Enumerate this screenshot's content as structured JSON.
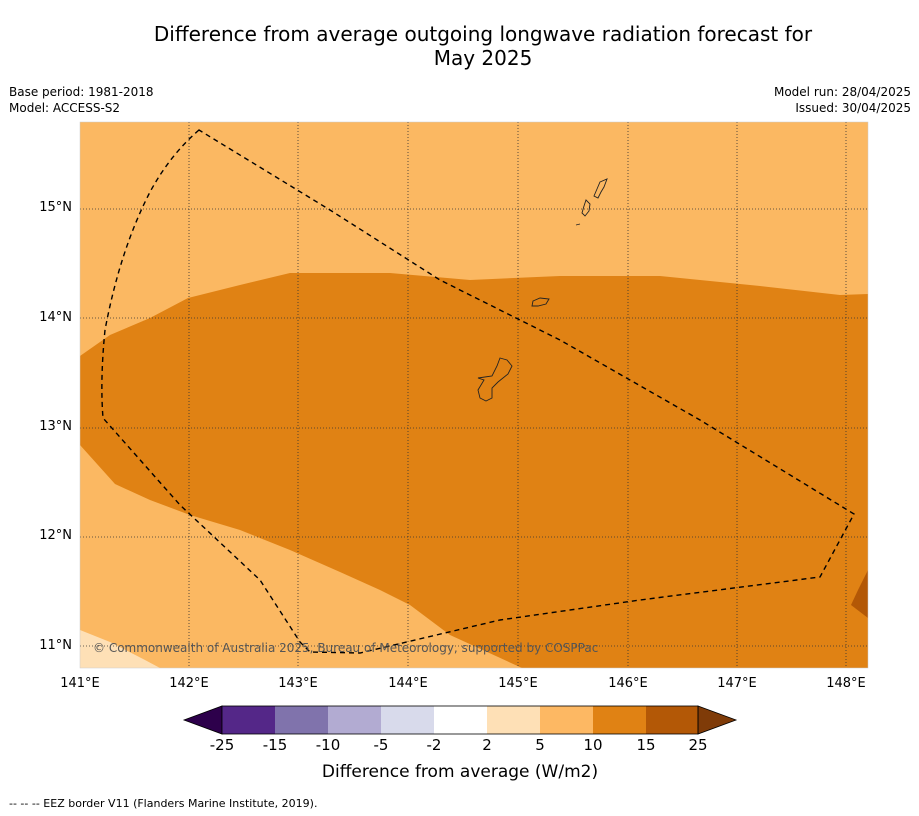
{
  "header": {
    "title_line1": "Difference from average outgoing longwave radiation forecast for",
    "title_line2": "May 2025",
    "base_period": "Base period: 1981-2018",
    "model": "Model: ACCESS-S2",
    "model_run": "Model run: 28/04/2025",
    "issued": "Issued: 30/04/2025"
  },
  "map": {
    "lat_labels": [
      "15°N",
      "14°N",
      "13°N",
      "12°N",
      "11°N"
    ],
    "lon_labels": [
      "141°E",
      "142°E",
      "143°E",
      "144°E",
      "145°E",
      "146°E",
      "147°E",
      "148°E"
    ],
    "copyright": "© Commonwealth of Australia 2025, Bureau of Meteorology, supported by COSPPac",
    "colors": {
      "band_5_10": "#fbb862",
      "band_10_15": "#e08214",
      "band_15_25": "#b35806",
      "band_2_5": "#fee0b6"
    }
  },
  "colorbar": {
    "ticks": [
      "-25",
      "-15",
      "-10",
      "-5",
      "-2",
      "2",
      "5",
      "10",
      "15",
      "25"
    ],
    "colors": [
      "#2d004b",
      "#542788",
      "#8073ac",
      "#b2abd2",
      "#d8daeb",
      "#ffffff",
      "#fee0b6",
      "#fdb863",
      "#e08214",
      "#b35806",
      "#7f3b08"
    ],
    "title": "Difference from average (W/m2)"
  },
  "footnote": "--  --  -- EEZ border V11 (Flanders Marine Institute, 2019)."
}
